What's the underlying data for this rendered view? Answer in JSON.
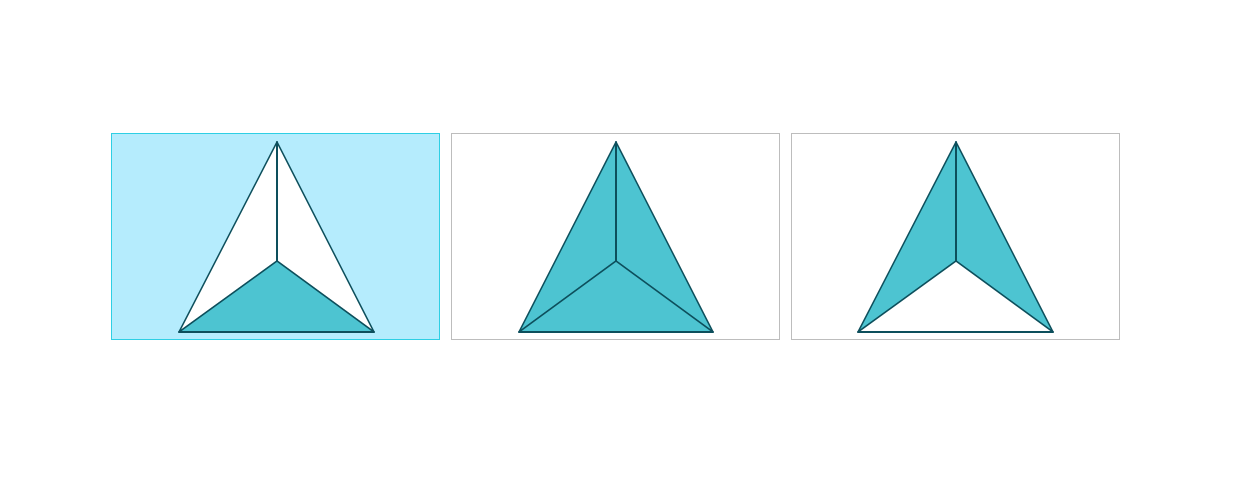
{
  "colors": {
    "shaded": "#4dc4d1",
    "unshaded": "#ffffff",
    "outline": "#0d4f5c",
    "selected_bg": "#b5ecfd",
    "selected_border": "#2ecfe4",
    "border": "#bdbdbd"
  },
  "options": [
    {
      "selected": true,
      "shaded_faces": [
        "bottom"
      ]
    },
    {
      "selected": false,
      "shaded_faces": [
        "left",
        "right",
        "bottom"
      ]
    },
    {
      "selected": false,
      "shaded_faces": [
        "left",
        "right"
      ]
    }
  ]
}
